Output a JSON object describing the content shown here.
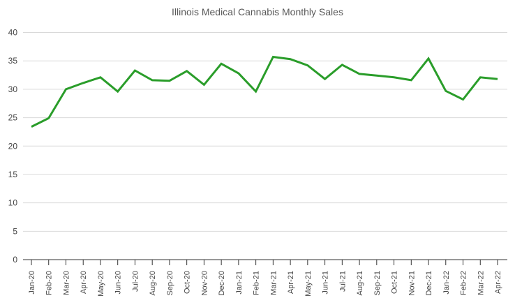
{
  "chart_data": {
    "type": "line",
    "title": "Illinois Medical Cannabis Monthly Sales",
    "xlabel": "",
    "ylabel": "",
    "ylim": [
      0,
      40
    ],
    "yticks": [
      "0",
      "5",
      "10",
      "15",
      "20",
      "25",
      "30",
      "35",
      "40"
    ],
    "grid": true,
    "legend": "none",
    "categories": [
      "Jan-20",
      "Feb-20",
      "Mar-20",
      "Apr-20",
      "May-20",
      "Jun-20",
      "Jul-20",
      "Aug-20",
      "Sep-20",
      "Oct-20",
      "Nov-20",
      "Dec-20",
      "Jan-21",
      "Feb-21",
      "Mar-21",
      "Apr-21",
      "May-21",
      "Jun-21",
      "Jul-21",
      "Aug-21",
      "Sep-21",
      "Oct-21",
      "Nov-21",
      "Dec-21",
      "Jan-22",
      "Feb-22",
      "Mar-22",
      "Apr-22"
    ],
    "series": [
      {
        "name": "Monthly Sales",
        "color": "#2a9d2a",
        "values": [
          23.4,
          24.9,
          30.0,
          31.1,
          32.1,
          29.6,
          33.3,
          31.6,
          31.5,
          33.2,
          30.8,
          34.5,
          32.8,
          29.6,
          35.7,
          35.3,
          34.2,
          31.8,
          34.3,
          32.7,
          32.4,
          32.1,
          31.6,
          35.4,
          29.7,
          28.2,
          32.1,
          31.8
        ]
      }
    ]
  }
}
